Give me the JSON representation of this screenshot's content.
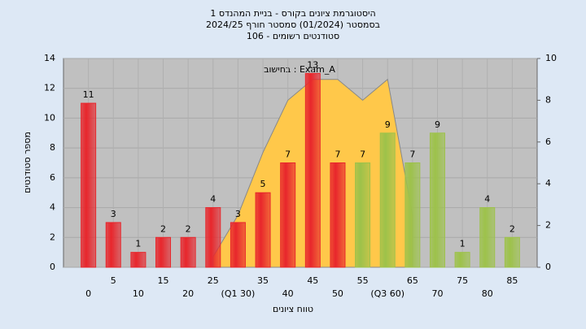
{
  "chart_data": {
    "type": "bar",
    "title": [
      "היסטוגרמת ציונים בקורס - בניית המהנדס 1",
      "בסמסטר  (01/2024)  סמסטר חורף 2024/25",
      "סטודנטים רשומים - 106"
    ],
    "annotation": "בחישוב : Exam_A",
    "ylabel": "מספר סטודנטים",
    "xlabel": "טווח ציונים",
    "categories": [
      "0",
      "5",
      "10",
      "15",
      "20",
      "25",
      "(Q1 30)",
      "35",
      "40",
      "45",
      "50",
      "55",
      "(Q3 60)",
      "65",
      "70",
      "75",
      "80",
      "85"
    ],
    "values": [
      11,
      3,
      1,
      2,
      2,
      4,
      3,
      5,
      7,
      13,
      7,
      7,
      9,
      7,
      9,
      1,
      4,
      2
    ],
    "bar_colors": [
      "#e8262c",
      "#e8262c",
      "#e8262c",
      "#e8262c",
      "#e8262c",
      "#e8262c",
      "#e8262c",
      "#e8262c",
      "#e8262c",
      "#e8262c",
      "#e8262c",
      "#9dc24a",
      "#9dc24a",
      "#9dc24a",
      "#9dc24a",
      "#9dc24a",
      "#9dc24a",
      "#9dc24a"
    ],
    "area": {
      "color": "#ffc84a",
      "axis": "y2",
      "values": [
        null,
        null,
        null,
        null,
        null,
        0.5,
        2.5,
        5.5,
        8,
        9,
        9,
        8,
        9,
        2.5,
        null,
        null,
        null,
        null
      ]
    },
    "ylim": [
      0,
      14
    ],
    "yticks": [
      0,
      2,
      4,
      6,
      8,
      10,
      12,
      14
    ],
    "y2lim": [
      0,
      10
    ],
    "y2ticks": [
      0,
      2,
      4,
      6,
      8,
      10
    ],
    "grid": true
  }
}
